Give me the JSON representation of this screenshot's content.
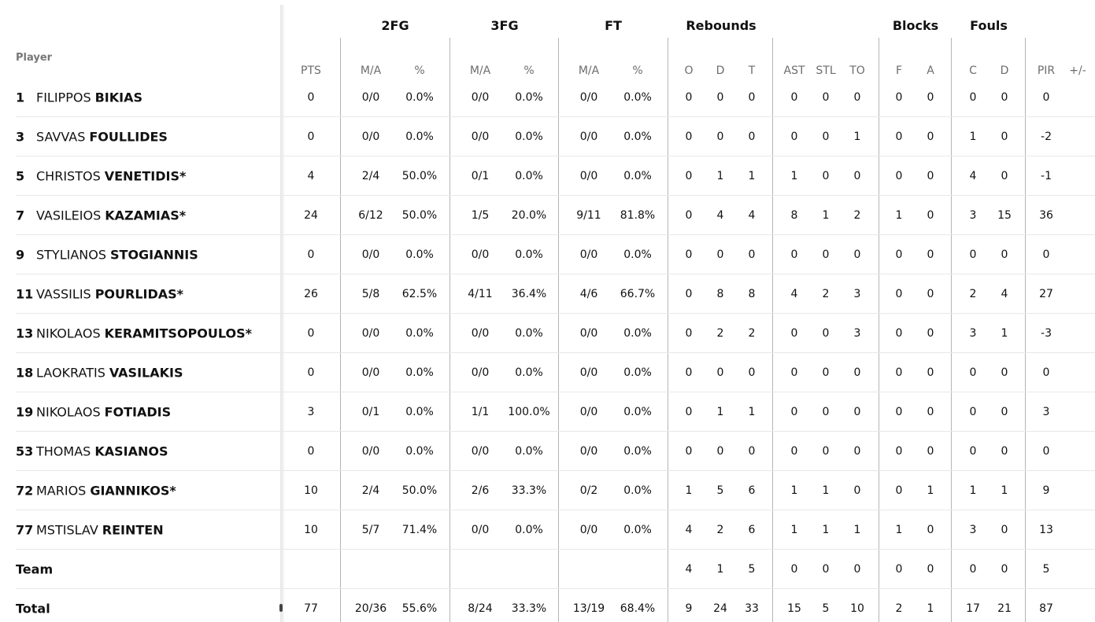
{
  "table": {
    "player_header": "Player",
    "group_headers": [
      {
        "key": "2fg",
        "label": "2FG"
      },
      {
        "key": "3fg",
        "label": "3FG"
      },
      {
        "key": "ft",
        "label": "FT"
      },
      {
        "key": "rebounds",
        "label": "Rebounds"
      },
      {
        "key": "blocks",
        "label": "Blocks"
      },
      {
        "key": "fouls",
        "label": "Fouls"
      }
    ],
    "columns": [
      {
        "key": "pts",
        "label": "PTS"
      },
      {
        "key": "fg2_ma",
        "label": "M/A"
      },
      {
        "key": "fg2_pct",
        "label": "%"
      },
      {
        "key": "fg3_ma",
        "label": "M/A"
      },
      {
        "key": "fg3_pct",
        "label": "%"
      },
      {
        "key": "ft_ma",
        "label": "M/A"
      },
      {
        "key": "ft_pct",
        "label": "%"
      },
      {
        "key": "reb_o",
        "label": "O"
      },
      {
        "key": "reb_d",
        "label": "D"
      },
      {
        "key": "reb_t",
        "label": "T"
      },
      {
        "key": "ast",
        "label": "AST"
      },
      {
        "key": "stl",
        "label": "STL"
      },
      {
        "key": "to",
        "label": "TO"
      },
      {
        "key": "blk_f",
        "label": "F"
      },
      {
        "key": "blk_a",
        "label": "A"
      },
      {
        "key": "foul_c",
        "label": "C"
      },
      {
        "key": "foul_d",
        "label": "D"
      },
      {
        "key": "pir",
        "label": "PIR"
      },
      {
        "key": "pm",
        "label": "+/-"
      }
    ],
    "rows": [
      {
        "number": "1",
        "first": "FILIPPOS",
        "last": "BIKIAS",
        "starter": false,
        "stats": [
          "0",
          "0/0",
          "0.0%",
          "0/0",
          "0.0%",
          "0/0",
          "0.0%",
          "0",
          "0",
          "0",
          "0",
          "0",
          "0",
          "0",
          "0",
          "0",
          "0",
          "0",
          ""
        ]
      },
      {
        "number": "3",
        "first": "SAVVAS",
        "last": "FOULLIDES",
        "starter": false,
        "stats": [
          "0",
          "0/0",
          "0.0%",
          "0/0",
          "0.0%",
          "0/0",
          "0.0%",
          "0",
          "0",
          "0",
          "0",
          "0",
          "1",
          "0",
          "0",
          "1",
          "0",
          "-2",
          ""
        ]
      },
      {
        "number": "5",
        "first": "CHRISTOS",
        "last": "VENETIDIS",
        "starter": true,
        "stats": [
          "4",
          "2/4",
          "50.0%",
          "0/1",
          "0.0%",
          "0/0",
          "0.0%",
          "0",
          "1",
          "1",
          "1",
          "0",
          "0",
          "0",
          "0",
          "4",
          "0",
          "-1",
          ""
        ]
      },
      {
        "number": "7",
        "first": "VASILEIOS",
        "last": "KAZAMIAS",
        "starter": true,
        "stats": [
          "24",
          "6/12",
          "50.0%",
          "1/5",
          "20.0%",
          "9/11",
          "81.8%",
          "0",
          "4",
          "4",
          "8",
          "1",
          "2",
          "1",
          "0",
          "3",
          "15",
          "36",
          ""
        ]
      },
      {
        "number": "9",
        "first": "STYLIANOS",
        "last": "STOGIANNIS",
        "starter": false,
        "stats": [
          "0",
          "0/0",
          "0.0%",
          "0/0",
          "0.0%",
          "0/0",
          "0.0%",
          "0",
          "0",
          "0",
          "0",
          "0",
          "0",
          "0",
          "0",
          "0",
          "0",
          "0",
          ""
        ]
      },
      {
        "number": "11",
        "first": "VASSILIS",
        "last": "POURLIDAS",
        "starter": true,
        "stats": [
          "26",
          "5/8",
          "62.5%",
          "4/11",
          "36.4%",
          "4/6",
          "66.7%",
          "0",
          "8",
          "8",
          "4",
          "2",
          "3",
          "0",
          "0",
          "2",
          "4",
          "27",
          ""
        ]
      },
      {
        "number": "13",
        "first": "NIKOLAOS",
        "last": "KERAMITSOPOULOS",
        "starter": true,
        "stats": [
          "0",
          "0/0",
          "0.0%",
          "0/0",
          "0.0%",
          "0/0",
          "0.0%",
          "0",
          "2",
          "2",
          "0",
          "0",
          "3",
          "0",
          "0",
          "3",
          "1",
          "-3",
          ""
        ]
      },
      {
        "number": "18",
        "first": "LAOKRATIS",
        "last": "VASILAKIS",
        "starter": false,
        "stats": [
          "0",
          "0/0",
          "0.0%",
          "0/0",
          "0.0%",
          "0/0",
          "0.0%",
          "0",
          "0",
          "0",
          "0",
          "0",
          "0",
          "0",
          "0",
          "0",
          "0",
          "0",
          ""
        ]
      },
      {
        "number": "19",
        "first": "NIKOLAOS",
        "last": "FOTIADIS",
        "starter": false,
        "stats": [
          "3",
          "0/1",
          "0.0%",
          "1/1",
          "100.0%",
          "0/0",
          "0.0%",
          "0",
          "1",
          "1",
          "0",
          "0",
          "0",
          "0",
          "0",
          "0",
          "0",
          "3",
          ""
        ]
      },
      {
        "number": "53",
        "first": "THOMAS",
        "last": "KASIANOS",
        "starter": false,
        "stats": [
          "0",
          "0/0",
          "0.0%",
          "0/0",
          "0.0%",
          "0/0",
          "0.0%",
          "0",
          "0",
          "0",
          "0",
          "0",
          "0",
          "0",
          "0",
          "0",
          "0",
          "0",
          ""
        ]
      },
      {
        "number": "72",
        "first": "MARIOS",
        "last": "GIANNIKOS",
        "starter": true,
        "stats": [
          "10",
          "2/4",
          "50.0%",
          "2/6",
          "33.3%",
          "0/2",
          "0.0%",
          "1",
          "5",
          "6",
          "1",
          "1",
          "0",
          "0",
          "1",
          "1",
          "1",
          "9",
          ""
        ]
      },
      {
        "number": "77",
        "first": "MSTISLAV",
        "last": "REINTEN",
        "starter": false,
        "stats": [
          "10",
          "5/7",
          "71.4%",
          "0/0",
          "0.0%",
          "0/0",
          "0.0%",
          "4",
          "2",
          "6",
          "1",
          "1",
          "1",
          "1",
          "0",
          "3",
          "0",
          "13",
          ""
        ]
      }
    ],
    "team_row": {
      "label": "Team",
      "stats": [
        "",
        "",
        "",
        "",
        "",
        "",
        "",
        "4",
        "1",
        "5",
        "0",
        "0",
        "0",
        "0",
        "0",
        "0",
        "0",
        "5",
        ""
      ]
    },
    "total_row": {
      "label": "Total",
      "stats": [
        "77",
        "20/36",
        "55.6%",
        "8/24",
        "33.3%",
        "13/19",
        "68.4%",
        "9",
        "24",
        "33",
        "15",
        "5",
        "10",
        "2",
        "1",
        "17",
        "21",
        "87",
        ""
      ]
    }
  }
}
